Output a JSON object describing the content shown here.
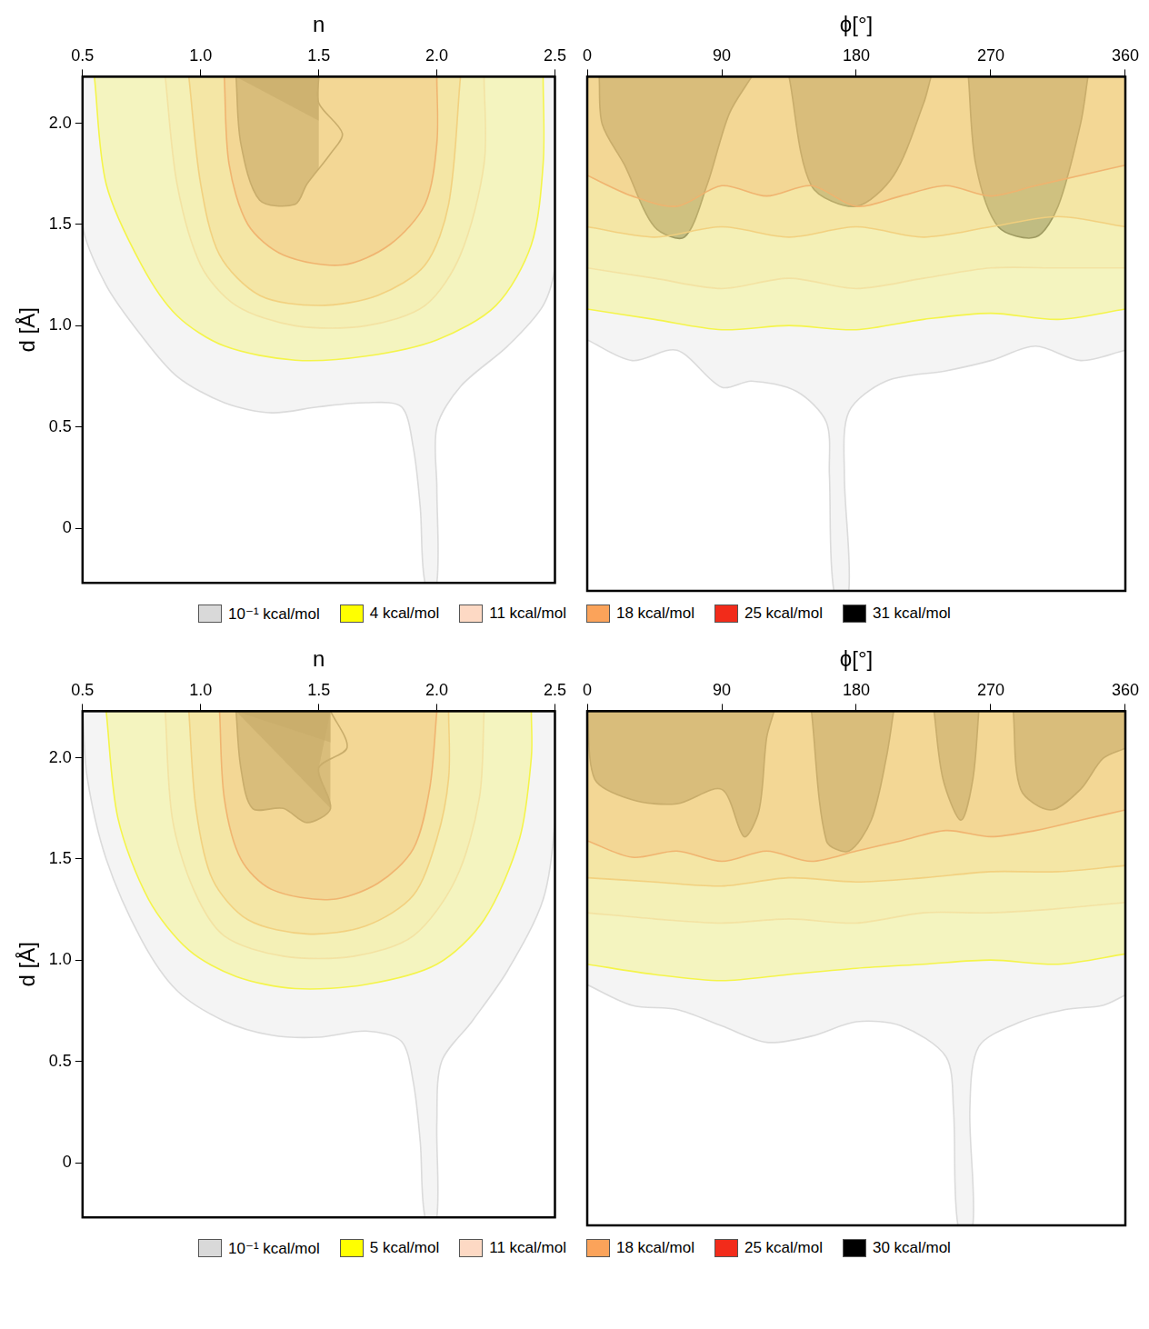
{
  "chart_data": [
    {
      "type": "contour",
      "xlabel": "n",
      "ylabel": "d [Å]",
      "xlim": [
        0.5,
        2.5
      ],
      "xticks": [
        0.5,
        {
          "value": 1,
          "label": "1.0"
        },
        1.5,
        {
          "value": 2,
          "label": "2.0"
        },
        2.5
      ],
      "ylim": [
        -0.27,
        2.23
      ],
      "yticks": [
        0,
        0.5,
        {
          "value": 1,
          "label": "1.0"
        },
        1.5,
        {
          "value": 2,
          "label": "2.0"
        }
      ],
      "grid": false,
      "legend": "bottom",
      "series": [
        {
          "name": "10⁻¹ kcal/mol",
          "color": "#d9d9d9",
          "x": [
            0.5,
            0.5,
            0.6,
            0.75,
            0.9,
            1.1,
            1.3,
            1.5,
            1.7,
            1.85,
            1.9,
            1.93,
            1.95,
            2.0,
            2.0,
            2.0,
            2.1,
            2.3,
            2.45,
            2.5,
            2.5
          ],
          "values": [
            2.23,
            1.5,
            1.2,
            0.95,
            0.75,
            0.62,
            0.57,
            0.6,
            0.62,
            0.6,
            0.4,
            0.1,
            -0.27,
            -0.27,
            0.2,
            0.5,
            0.7,
            0.9,
            1.1,
            1.3,
            2.23
          ]
        },
        {
          "name": "4 kcal/mol",
          "color": "#ffff00",
          "x": [
            0.55,
            0.6,
            0.75,
            0.9,
            1.1,
            1.4,
            1.7,
            2.0,
            2.25,
            2.4,
            2.45,
            2.45
          ],
          "values": [
            2.23,
            1.7,
            1.3,
            1.05,
            0.9,
            0.83,
            0.85,
            0.93,
            1.1,
            1.4,
            1.8,
            2.23
          ]
        },
        {
          "name": "11 kcal/mol",
          "color": "#fdd9c4",
          "x": [
            0.85,
            0.9,
            1.0,
            1.15,
            1.4,
            1.7,
            1.95,
            2.1,
            2.2,
            2.2
          ],
          "values": [
            2.23,
            1.7,
            1.3,
            1.1,
            1.0,
            1.0,
            1.1,
            1.35,
            1.8,
            2.23
          ]
        },
        {
          "name": "18 kcal/mol",
          "color": "#fba35a",
          "x": [
            0.95,
            1.0,
            1.08,
            1.25,
            1.5,
            1.75,
            1.95,
            2.05,
            2.1
          ],
          "values": [
            2.23,
            1.7,
            1.35,
            1.15,
            1.1,
            1.15,
            1.3,
            1.6,
            2.23
          ]
        },
        {
          "name": "25 kcal/mol",
          "color": "#f22b1a",
          "x": [
            1.1,
            1.12,
            1.2,
            1.35,
            1.6,
            1.8,
            1.95,
            2.0,
            2.0
          ],
          "values": [
            2.23,
            1.8,
            1.5,
            1.35,
            1.3,
            1.4,
            1.6,
            1.9,
            2.23
          ]
        },
        {
          "name": "31 kcal/mol",
          "color": "#000000",
          "x": [
            1.15,
            1.17,
            1.25,
            1.4,
            1.45,
            1.55,
            1.6,
            1.5,
            1.5
          ],
          "values": [
            2.23,
            1.9,
            1.62,
            1.6,
            1.7,
            1.85,
            1.95,
            2.1,
            2.23
          ]
        }
      ]
    },
    {
      "type": "contour",
      "xlabel": "ϕ[°]",
      "xlim": [
        0,
        360
      ],
      "xticks": [
        0,
        90,
        180,
        270,
        360
      ],
      "ylim": [
        -0.27,
        2.23
      ],
      "grid": false,
      "tick_labels": "x",
      "series": [
        {
          "name": "10⁻¹ kcal/mol",
          "color": "#d9d9d9",
          "x": [
            0,
            30,
            60,
            90,
            110,
            140,
            160,
            162,
            165,
            175,
            172,
            175,
            200,
            240,
            270,
            300,
            330,
            360
          ],
          "values": [
            0.95,
            0.85,
            0.9,
            0.72,
            0.75,
            0.7,
            0.55,
            0.3,
            -0.27,
            -0.27,
            0.3,
            0.6,
            0.75,
            0.8,
            0.85,
            0.92,
            0.85,
            0.9
          ]
        },
        {
          "name": "4 kcal/mol",
          "color": "#ffff00",
          "x": [
            0,
            45,
            90,
            135,
            180,
            225,
            270,
            315,
            360
          ],
          "values": [
            1.1,
            1.05,
            1.0,
            1.02,
            1.0,
            1.05,
            1.08,
            1.05,
            1.1
          ]
        },
        {
          "name": "11 kcal/mol",
          "color": "#fdd9c4",
          "x": [
            0,
            45,
            90,
            135,
            180,
            225,
            270,
            315,
            360
          ],
          "values": [
            1.3,
            1.25,
            1.2,
            1.25,
            1.2,
            1.25,
            1.3,
            1.3,
            1.3
          ]
        },
        {
          "name": "18 kcal/mol",
          "color": "#fba35a",
          "x": [
            0,
            45,
            90,
            135,
            180,
            225,
            270,
            315,
            360
          ],
          "values": [
            1.5,
            1.45,
            1.5,
            1.45,
            1.5,
            1.45,
            1.5,
            1.55,
            1.5
          ]
        },
        {
          "name": "25 kcal/mol",
          "color": "#f22b1a",
          "x": [
            0,
            30,
            60,
            90,
            120,
            150,
            180,
            210,
            240,
            270,
            300,
            330,
            360
          ],
          "values": [
            1.75,
            1.65,
            1.6,
            1.7,
            1.65,
            1.7,
            1.6,
            1.65,
            1.7,
            1.65,
            1.7,
            1.75,
            1.8
          ]
        },
        {
          "name": "31 kcal/mol",
          "color": "#000000",
          "x": [
            8,
            10,
            25,
            45,
            65,
            80,
            95,
            110,
            120,
            135,
            150,
            180,
            205,
            225,
            230,
            240,
            255,
            260,
            275,
            300,
            315,
            330,
            335
          ],
          "values": [
            2.23,
            2.0,
            1.8,
            1.5,
            1.45,
            1.7,
            2.05,
            2.23,
            null,
            2.23,
            1.7,
            1.6,
            1.75,
            2.1,
            2.23,
            null,
            2.23,
            1.8,
            1.5,
            1.45,
            1.6,
            2.0,
            2.23
          ]
        }
      ]
    },
    {
      "type": "contour",
      "xlabel": "n",
      "ylabel": "d [Å]",
      "xlim": [
        0.5,
        2.5
      ],
      "xticks": [
        0.5,
        {
          "value": 1,
          "label": "1.0"
        },
        1.5,
        {
          "value": 2,
          "label": "2.0"
        },
        2.5
      ],
      "ylim": [
        -0.27,
        2.23
      ],
      "yticks": [
        0,
        0.5,
        {
          "value": 1,
          "label": "1.0"
        },
        1.5,
        {
          "value": 2,
          "label": "2.0"
        }
      ],
      "grid": false,
      "legend": "bottom",
      "series": [
        {
          "name": "10⁻¹ kcal/mol",
          "color": "#d9d9d9",
          "x": [
            0.5,
            0.52,
            0.6,
            0.75,
            0.9,
            1.1,
            1.3,
            1.5,
            1.7,
            1.85,
            1.9,
            1.93,
            1.95,
            2.0,
            2.0,
            2.02,
            2.15,
            2.3,
            2.45,
            2.5,
            2.5
          ],
          "values": [
            2.23,
            1.9,
            1.5,
            1.1,
            0.85,
            0.7,
            0.63,
            0.62,
            0.65,
            0.6,
            0.4,
            0.1,
            -0.27,
            -0.27,
            0.2,
            0.5,
            0.7,
            0.95,
            1.3,
            1.7,
            2.23
          ]
        },
        {
          "name": "5 kcal/mol",
          "color": "#ffff00",
          "x": [
            0.6,
            0.65,
            0.78,
            0.95,
            1.15,
            1.4,
            1.7,
            2.0,
            2.2,
            2.35,
            2.4,
            2.4
          ],
          "values": [
            2.23,
            1.7,
            1.3,
            1.05,
            0.92,
            0.86,
            0.88,
            0.98,
            1.2,
            1.6,
            2.0,
            2.23
          ]
        },
        {
          "name": "11 kcal/mol",
          "color": "#fdd9c4",
          "x": [
            0.85,
            0.88,
            0.97,
            1.1,
            1.35,
            1.65,
            1.9,
            2.08,
            2.18,
            2.2
          ],
          "values": [
            2.23,
            1.7,
            1.35,
            1.12,
            1.02,
            1.02,
            1.12,
            1.4,
            1.8,
            2.23
          ]
        },
        {
          "name": "18 kcal/mol",
          "color": "#fba35a",
          "x": [
            0.95,
            0.98,
            1.05,
            1.2,
            1.45,
            1.7,
            1.9,
            2.0,
            2.05,
            2.05
          ],
          "values": [
            2.23,
            1.75,
            1.4,
            1.2,
            1.13,
            1.17,
            1.32,
            1.6,
            1.9,
            2.23
          ]
        },
        {
          "name": "25 kcal/mol",
          "color": "#f22b1a",
          "x": [
            1.08,
            1.1,
            1.17,
            1.3,
            1.55,
            1.75,
            1.9,
            1.97,
            2.0
          ],
          "values": [
            2.23,
            1.8,
            1.5,
            1.35,
            1.3,
            1.38,
            1.55,
            1.85,
            2.23
          ]
        },
        {
          "name": "30 kcal/mol",
          "color": "#000000",
          "x": [
            1.15,
            1.17,
            1.22,
            1.35,
            1.45,
            1.55,
            1.5,
            1.62,
            1.55
          ],
          "values": [
            2.23,
            1.95,
            1.75,
            1.75,
            1.68,
            1.75,
            1.95,
            2.05,
            2.23
          ]
        }
      ]
    },
    {
      "type": "contour",
      "xlabel": "ϕ[°]",
      "xlim": [
        0,
        360
      ],
      "xticks": [
        0,
        90,
        180,
        270,
        360
      ],
      "ylim": [
        -0.27,
        2.23
      ],
      "grid": false,
      "tick_labels": "x",
      "series": [
        {
          "name": "10⁻¹ kcal/mol",
          "color": "#d9d9d9",
          "x": [
            0,
            30,
            60,
            90,
            120,
            150,
            180,
            210,
            240,
            245,
            248,
            258,
            256,
            262,
            290,
            320,
            345,
            360
          ],
          "values": [
            0.9,
            0.8,
            0.78,
            0.7,
            0.62,
            0.65,
            0.72,
            0.7,
            0.55,
            0.3,
            -0.27,
            -0.27,
            0.3,
            0.6,
            0.72,
            0.78,
            0.8,
            0.85
          ]
        },
        {
          "name": "5 kcal/mol",
          "color": "#ffff00",
          "x": [
            0,
            45,
            90,
            135,
            180,
            225,
            270,
            315,
            360
          ],
          "values": [
            1.0,
            0.95,
            0.92,
            0.95,
            0.98,
            1.0,
            1.02,
            1.0,
            1.05
          ]
        },
        {
          "name": "11 kcal/mol",
          "color": "#fdd9c4",
          "x": [
            0,
            45,
            90,
            135,
            180,
            225,
            270,
            315,
            360
          ],
          "values": [
            1.25,
            1.22,
            1.2,
            1.22,
            1.2,
            1.25,
            1.25,
            1.27,
            1.3
          ]
        },
        {
          "name": "18 kcal/mol",
          "color": "#fba35a",
          "x": [
            0,
            45,
            90,
            135,
            180,
            225,
            270,
            315,
            360
          ],
          "values": [
            1.42,
            1.4,
            1.38,
            1.42,
            1.4,
            1.42,
            1.45,
            1.45,
            1.48
          ]
        },
        {
          "name": "25 kcal/mol",
          "color": "#f22b1a",
          "x": [
            0,
            30,
            60,
            90,
            120,
            150,
            180,
            210,
            240,
            270,
            300,
            330,
            360
          ],
          "values": [
            1.6,
            1.52,
            1.55,
            1.5,
            1.55,
            1.5,
            1.55,
            1.6,
            1.65,
            1.62,
            1.65,
            1.7,
            1.75
          ]
        },
        {
          "name": "30 kcal/mol",
          "color": "#000000",
          "x": [
            0,
            5,
            30,
            60,
            90,
            105,
            115,
            120,
            125,
            130,
            150,
            160,
            175,
            190,
            200,
            205,
            215,
            232,
            238,
            250,
            258,
            262,
            275,
            285,
            290,
            310,
            330,
            345,
            360
          ],
          "values": [
            2.23,
            1.9,
            1.8,
            1.78,
            1.85,
            1.62,
            1.75,
            2.1,
            2.23,
            null,
            2.23,
            1.6,
            1.55,
            1.7,
            2.0,
            2.23,
            null,
            2.23,
            1.9,
            1.7,
            1.9,
            2.23,
            null,
            2.23,
            1.85,
            1.75,
            1.85,
            2.0,
            2.05
          ]
        }
      ]
    }
  ]
}
